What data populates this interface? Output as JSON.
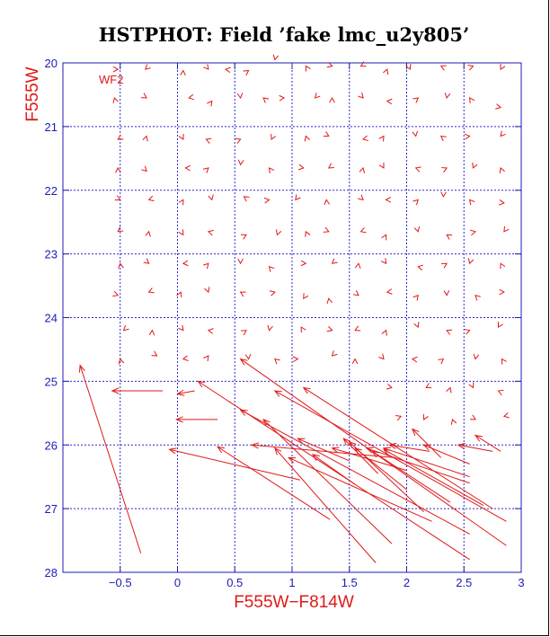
{
  "chart_data": {
    "type": "scatter",
    "title": "HSTPHOT: Field ’fake lmc_u2y805’",
    "xlabel": "F555W−F814W",
    "ylabel": "F555W",
    "xlim": [
      -1.0,
      3.0
    ],
    "ylim": [
      28.0,
      20.0
    ],
    "y_inverted": true,
    "x_ticks": [
      -0.5,
      0,
      0.5,
      1,
      1.5,
      2,
      2.5,
      3
    ],
    "x_tick_labels": [
      "−0.5",
      "0",
      "0.5",
      "1",
      "1.5",
      "2",
      "2.5",
      "3"
    ],
    "y_ticks": [
      20,
      21,
      22,
      23,
      24,
      25,
      26,
      27,
      28
    ],
    "y_tick_labels": [
      "20",
      "21",
      "22",
      "23",
      "24",
      "25",
      "26",
      "27",
      "28"
    ],
    "grid": true,
    "annotation": "WF2",
    "colors": {
      "marks": "#e01818",
      "grid": "#2a2ad0",
      "ticks": "#1c1cb4",
      "title": "#000000"
    },
    "arrows": [
      [
        -0.32,
        27.7,
        -0.85,
        24.75
      ],
      [
        -0.13,
        25.15,
        -0.57,
        25.15
      ],
      [
        0.35,
        25.6,
        -0.01,
        25.6
      ],
      [
        0.15,
        25.15,
        0.0,
        25.2
      ],
      [
        1.07,
        26.55,
        -0.07,
        26.07
      ],
      [
        1.33,
        27.17,
        0.35,
        26.03
      ],
      [
        2.87,
        27.58,
        0.55,
        24.65
      ],
      [
        2.55,
        27.8,
        0.18,
        25.0
      ],
      [
        2.55,
        27.4,
        0.55,
        25.45
      ],
      [
        2.87,
        27.2,
        0.85,
        25.15
      ],
      [
        1.87,
        27.55,
        0.75,
        25.6
      ],
      [
        1.73,
        27.85,
        0.85,
        26.05
      ],
      [
        2.75,
        27.0,
        1.1,
        25.1
      ],
      [
        2.15,
        27.05,
        1.5,
        25.95
      ],
      [
        2.55,
        26.6,
        1.65,
        26.05
      ],
      [
        2.67,
        26.95,
        1.8,
        26.07
      ],
      [
        2.22,
        27.2,
        0.97,
        26.2
      ],
      [
        2.0,
        26.7,
        1.55,
        26.05
      ],
      [
        1.55,
        26.62,
        1.18,
        26.15
      ],
      [
        2.38,
        26.9,
        1.7,
        26.1
      ],
      [
        2.3,
        26.2,
        2.05,
        25.75
      ],
      [
        2.55,
        26.5,
        1.8,
        26.05
      ],
      [
        2.0,
        26.4,
        1.35,
        26.05
      ],
      [
        2.55,
        26.3,
        2.15,
        26.0
      ],
      [
        2.75,
        26.1,
        2.45,
        26.0
      ],
      [
        2.82,
        26.1,
        2.6,
        25.85
      ],
      [
        2.2,
        26.1,
        1.85,
        26.0
      ],
      [
        1.9,
        26.2,
        0.65,
        26.0
      ],
      [
        1.75,
        26.45,
        1.45,
        25.9
      ],
      [
        1.5,
        26.25,
        1.05,
        25.9
      ]
    ],
    "markers": [
      [
        -0.52,
        20.1
      ],
      [
        -0.28,
        20.1
      ],
      [
        0.05,
        20.12
      ],
      [
        0.27,
        20.1
      ],
      [
        0.42,
        20.1
      ],
      [
        0.62,
        20.12
      ],
      [
        0.85,
        19.95
      ],
      [
        1.12,
        20.05
      ],
      [
        1.35,
        20.05
      ],
      [
        1.6,
        20.05
      ],
      [
        1.83,
        20.1
      ],
      [
        2.03,
        20.1
      ],
      [
        2.3,
        20.05
      ],
      [
        2.58,
        20.05
      ],
      [
        2.82,
        20.1
      ],
      [
        -0.55,
        20.55
      ],
      [
        -0.27,
        20.55
      ],
      [
        0.1,
        20.55
      ],
      [
        0.3,
        20.6
      ],
      [
        0.55,
        20.55
      ],
      [
        0.75,
        20.55
      ],
      [
        0.93,
        20.55
      ],
      [
        1.2,
        20.55
      ],
      [
        1.35,
        20.55
      ],
      [
        1.62,
        20.55
      ],
      [
        1.83,
        20.6
      ],
      [
        2.1,
        20.55
      ],
      [
        2.35,
        20.55
      ],
      [
        2.55,
        20.55
      ],
      [
        2.82,
        20.7
      ],
      [
        -0.52,
        21.2
      ],
      [
        -0.27,
        21.15
      ],
      [
        0.05,
        21.2
      ],
      [
        0.25,
        21.2
      ],
      [
        0.55,
        21.2
      ],
      [
        0.82,
        21.2
      ],
      [
        1.12,
        21.15
      ],
      [
        1.32,
        21.15
      ],
      [
        1.62,
        21.2
      ],
      [
        1.8,
        21.15
      ],
      [
        2.08,
        21.15
      ],
      [
        2.3,
        21.15
      ],
      [
        2.55,
        21.15
      ],
      [
        2.82,
        21.15
      ],
      [
        -0.52,
        21.65
      ],
      [
        -0.27,
        21.7
      ],
      [
        0.07,
        21.65
      ],
      [
        0.27,
        21.65
      ],
      [
        0.55,
        21.6
      ],
      [
        0.8,
        21.65
      ],
      [
        1.1,
        21.65
      ],
      [
        1.32,
        21.65
      ],
      [
        1.62,
        21.65
      ],
      [
        1.8,
        21.65
      ],
      [
        2.08,
        21.65
      ],
      [
        2.35,
        21.65
      ],
      [
        2.58,
        21.65
      ],
      [
        2.82,
        21.65
      ],
      [
        -0.5,
        22.15
      ],
      [
        -0.25,
        22.15
      ],
      [
        0.05,
        22.15
      ],
      [
        0.3,
        22.15
      ],
      [
        0.58,
        22.1
      ],
      [
        0.8,
        22.15
      ],
      [
        1.03,
        22.15
      ],
      [
        1.3,
        22.15
      ],
      [
        1.62,
        22.15
      ],
      [
        1.82,
        22.15
      ],
      [
        2.1,
        22.15
      ],
      [
        2.32,
        22.1
      ],
      [
        2.55,
        22.15
      ],
      [
        2.85,
        22.2
      ],
      [
        -0.52,
        22.65
      ],
      [
        -0.25,
        22.65
      ],
      [
        0.05,
        22.7
      ],
      [
        0.27,
        22.65
      ],
      [
        0.6,
        22.7
      ],
      [
        0.87,
        22.7
      ],
      [
        1.12,
        22.65
      ],
      [
        1.32,
        22.65
      ],
      [
        1.6,
        22.65
      ],
      [
        1.82,
        22.7
      ],
      [
        2.1,
        22.65
      ],
      [
        2.35,
        22.7
      ],
      [
        2.6,
        22.65
      ],
      [
        2.85,
        22.65
      ],
      [
        -0.5,
        23.15
      ],
      [
        -0.25,
        23.15
      ],
      [
        0.05,
        23.15
      ],
      [
        0.27,
        23.15
      ],
      [
        0.55,
        23.15
      ],
      [
        0.8,
        23.2
      ],
      [
        1.12,
        23.15
      ],
      [
        1.35,
        23.15
      ],
      [
        1.58,
        23.15
      ],
      [
        1.82,
        23.15
      ],
      [
        2.1,
        23.2
      ],
      [
        2.35,
        23.15
      ],
      [
        2.55,
        23.15
      ],
      [
        2.82,
        23.15
      ],
      [
        -0.52,
        23.65
      ],
      [
        -0.25,
        23.6
      ],
      [
        0.03,
        23.6
      ],
      [
        0.27,
        23.6
      ],
      [
        0.55,
        23.6
      ],
      [
        0.85,
        23.6
      ],
      [
        1.1,
        23.7
      ],
      [
        1.32,
        23.7
      ],
      [
        1.58,
        23.65
      ],
      [
        1.83,
        23.6
      ],
      [
        2.1,
        23.65
      ],
      [
        2.35,
        23.65
      ],
      [
        2.6,
        23.65
      ],
      [
        2.85,
        23.6
      ],
      [
        -0.47,
        24.2
      ],
      [
        -0.22,
        24.2
      ],
      [
        0.05,
        24.2
      ],
      [
        0.27,
        24.2
      ],
      [
        0.6,
        24.2
      ],
      [
        0.8,
        24.2
      ],
      [
        1.08,
        24.15
      ],
      [
        1.35,
        24.2
      ],
      [
        1.55,
        24.2
      ],
      [
        1.82,
        24.2
      ],
      [
        2.1,
        24.15
      ],
      [
        2.35,
        24.2
      ],
      [
        2.55,
        24.2
      ],
      [
        2.8,
        24.15
      ],
      [
        -0.5,
        24.65
      ],
      [
        -0.18,
        24.6
      ],
      [
        0.05,
        24.65
      ],
      [
        0.27,
        24.6
      ],
      [
        0.62,
        24.65
      ],
      [
        0.85,
        24.65
      ],
      [
        1.05,
        24.65
      ],
      [
        1.35,
        24.6
      ],
      [
        1.55,
        24.65
      ],
      [
        1.8,
        24.65
      ],
      [
        2.05,
        24.65
      ],
      [
        2.32,
        24.65
      ],
      [
        2.6,
        24.65
      ],
      [
        2.83,
        24.65
      ],
      [
        1.87,
        25.1
      ],
      [
        2.17,
        25.1
      ],
      [
        2.38,
        25.1
      ],
      [
        2.58,
        25.1
      ],
      [
        2.8,
        25.15
      ],
      [
        1.95,
        25.55
      ],
      [
        2.15,
        25.6
      ],
      [
        2.4,
        25.6
      ],
      [
        2.6,
        25.6
      ],
      [
        2.85,
        25.55
      ]
    ]
  }
}
